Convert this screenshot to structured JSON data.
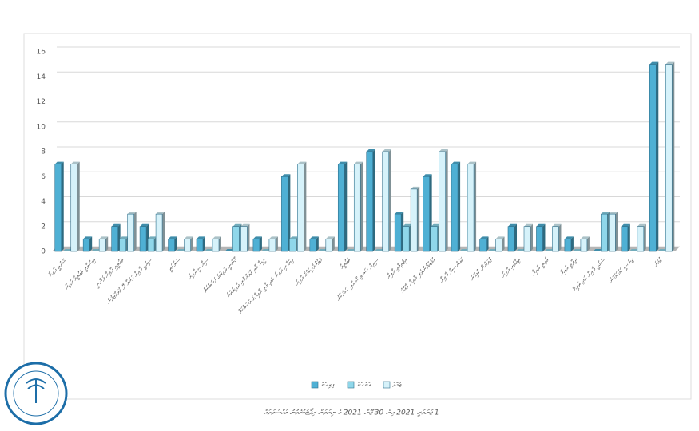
{
  "chart_data": {
    "type": "bar",
    "categories": [
      "ޝަރުޢީ ދާއިރާ",
      "އިސްލާމީ ތަޢުލީމު ދާއިރާ",
      "ތަޢުލީމީ ދާއިރާ ފަންނީ",
      "ސިއްޙީ ދާއިރާ ފަރުވާ ދޭ މުވައްޒަފުން",
      "ސަލާމަތީ",
      "ސިޔާސީ ދާއިރާ",
      "ޤާނޫނީ ދާއިރާގެ މަސައްކަތް",
      "މީޑިއާ އާއި ގުޅުންހުރި ދާއިރާތައް",
      "ވިޔަފާރި ދާއިރާ އަދި މާލީ ދާއިރާގެ މަސައްކަތް",
      "ފަތުރުވެރިކަމުގެ ދާއިރާ",
      "ތަޢުލީމު",
      "ސިވިލް ސަރވިސް އާއި ސަރުކާރު",
      "އިޖުތިމާޢީ ދާއިރާ",
      "އުފެއްދުންތެރި ދާއިރާ ޢާއްމު",
      "ކައުންސިލް ދާއިރާ",
      "ޒުވާނުން ކުޅިވަރު",
      "ތިމާވެށި ދާއިރާ",
      "ޢާއިލީ ދާއިރާ",
      "ދިފާޢީ ދާއިރާ",
      "ސަގާފީ ދާއިރާ އަދި ތާރީޚު",
      "ޖިންސީ ހަމަހަމަކަން",
      "ޖުމްލަ"
    ],
    "series": [
      {
        "name": "ފިރިހެން",
        "color": "#4fb0d4",
        "values": [
          7,
          1,
          2,
          2,
          1,
          1,
          0,
          1,
          6,
          1,
          7,
          8,
          3,
          6,
          7,
          1,
          2,
          2,
          1,
          0,
          2,
          15
        ]
      },
      {
        "name": "އަންހެން",
        "color": "#8fd7ea",
        "values": [
          0,
          0,
          1,
          1,
          0,
          0,
          2,
          0,
          1,
          0,
          0,
          0,
          2,
          2,
          0,
          0,
          0,
          0,
          0,
          3,
          0,
          0
        ]
      },
      {
        "name": "ޖުމްލަ",
        "color": "#d6f2fa",
        "values": [
          7,
          1,
          3,
          3,
          1,
          1,
          2,
          1,
          7,
          1,
          7,
          8,
          5,
          8,
          7,
          1,
          2,
          2,
          1,
          3,
          2,
          15
        ]
      }
    ],
    "ylim": [
      0,
      16
    ],
    "yticks": [
      0,
      2,
      4,
      6,
      8,
      10,
      12,
      14,
      16
    ],
    "grid": true,
    "caption": "1 ޖަނަވަރީ 2021 އިން 30 ޖޫން 2021 ގެ ނިޔަލަށް ރިޕޯޓުކުރެވުނު މައްސަލަތައް"
  }
}
